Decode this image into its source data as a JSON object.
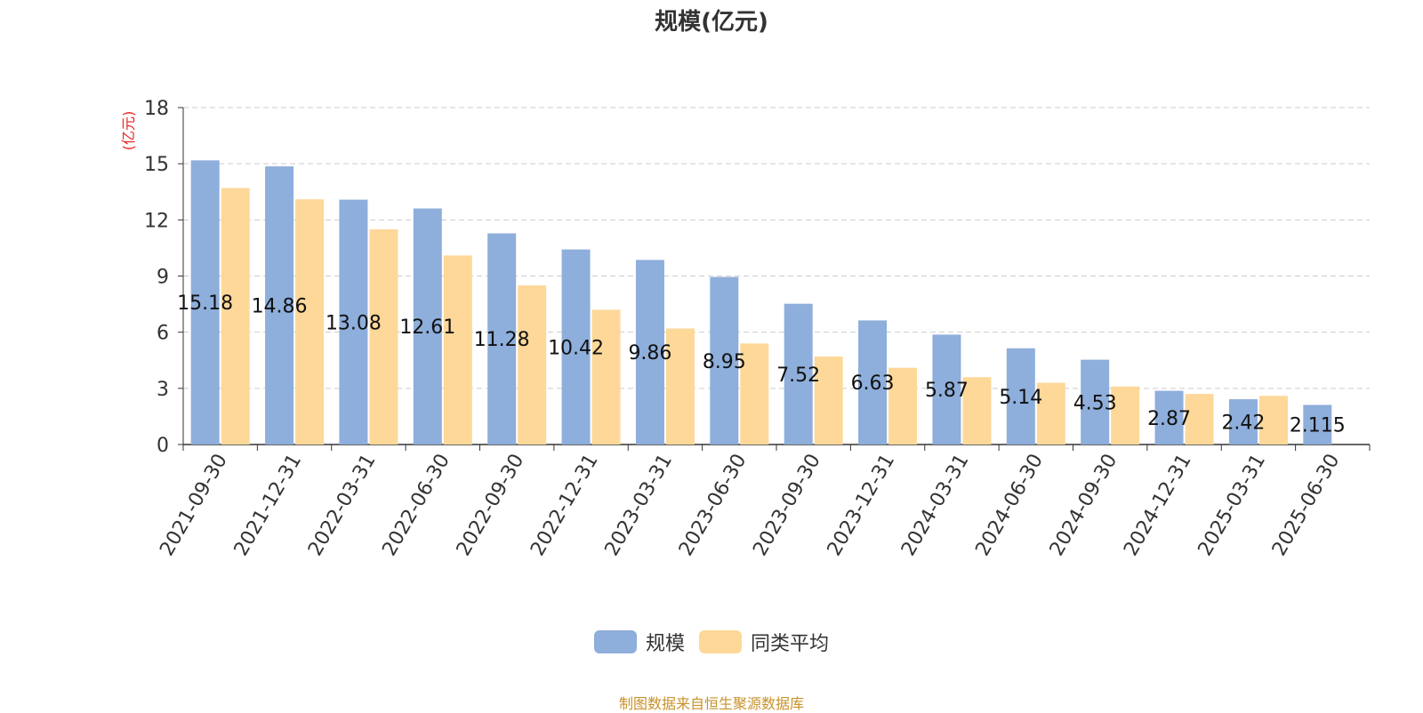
{
  "chart_data": {
    "type": "bar",
    "title": "规模(亿元)",
    "ylabel": "(亿元)",
    "ylim": [
      0,
      18
    ],
    "yticks": [
      0,
      3,
      6,
      9,
      12,
      15,
      18
    ],
    "grid": true,
    "legend_position": "bottom",
    "categories": [
      "2021-09-30",
      "2021-12-31",
      "2022-03-31",
      "2022-06-30",
      "2022-09-30",
      "2022-12-31",
      "2023-03-31",
      "2023-06-30",
      "2023-09-30",
      "2023-12-31",
      "2024-03-31",
      "2024-06-30",
      "2024-09-30",
      "2024-12-31",
      "2025-03-31",
      "2025-06-30"
    ],
    "series": [
      {
        "name": "规模",
        "color": "#8eaedb",
        "values": [
          15.18,
          14.86,
          13.08,
          12.61,
          11.28,
          10.42,
          9.86,
          8.95,
          7.52,
          6.63,
          5.87,
          5.14,
          4.53,
          2.87,
          2.42,
          2.115
        ],
        "labels": [
          "15.18",
          "14.86",
          "13.08",
          "12.61",
          "11.28",
          "10.42",
          "9.86",
          "8.95",
          "7.52",
          "6.63",
          "5.87",
          "5.14",
          "4.53",
          "2.87",
          "2.42",
          "2.115"
        ]
      },
      {
        "name": "同类平均",
        "color": "#fdd899",
        "values": [
          13.7,
          13.1,
          11.5,
          10.1,
          8.5,
          7.2,
          6.2,
          5.4,
          4.7,
          4.1,
          3.6,
          3.3,
          3.1,
          2.7,
          2.6,
          null
        ]
      }
    ]
  },
  "source_text": "制图数据来自恒生聚源数据库",
  "source_color": "#c8922a",
  "ylabel_color": "#ee2222"
}
